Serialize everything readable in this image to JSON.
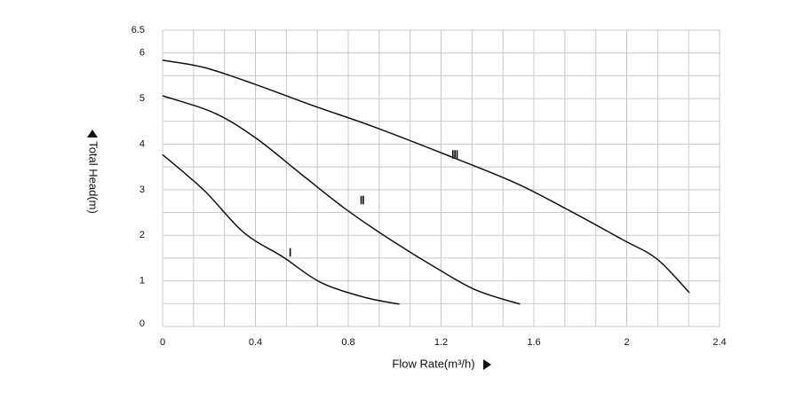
{
  "chart_data": {
    "type": "line",
    "x_label": "Flow Rate(m³/h)",
    "y_label": "Total Head(m)",
    "xlim": [
      0,
      2.4
    ],
    "xticks": [
      0,
      0.4,
      0.8,
      1.2,
      1.6,
      2,
      2.4
    ],
    "xminor_ticks": [
      0.1333,
      0.2667,
      0.5333,
      0.6667,
      0.9333,
      1.0667,
      1.3333,
      1.4667,
      1.7333,
      1.8667,
      2.1333,
      2.2667
    ],
    "ylim": [
      0,
      6.5
    ],
    "yticks": [
      0,
      1,
      2,
      3,
      4,
      5,
      6,
      6.5
    ],
    "yminor_ticks": [
      0.5,
      1.5,
      2.5,
      3.5,
      4.5,
      5.5
    ],
    "grid": true,
    "grid_color": "#c8c8c8",
    "series": [
      {
        "name": "Ⅰ",
        "color": "#111111",
        "x": [
          0,
          0.18,
          0.35,
          0.52,
          0.68,
          0.87,
          1.02
        ],
        "values": [
          3.77,
          2.98,
          2.06,
          1.52,
          0.97,
          0.64,
          0.49
        ]
      },
      {
        "name": "Ⅱ",
        "color": "#111111",
        "x": [
          0,
          0.22,
          0.4,
          0.6,
          0.79,
          0.98,
          1.18,
          1.35,
          1.54
        ],
        "values": [
          5.06,
          4.69,
          4.14,
          3.33,
          2.57,
          1.91,
          1.28,
          0.8,
          0.49
        ]
      },
      {
        "name": "Ⅲ",
        "color": "#111111",
        "x": [
          0,
          0.18,
          0.4,
          0.64,
          0.91,
          1.21,
          1.52,
          1.75,
          1.98,
          2.13,
          2.27
        ],
        "values": [
          5.84,
          5.68,
          5.31,
          4.86,
          4.38,
          3.79,
          3.15,
          2.55,
          1.91,
          1.48,
          0.74
        ]
      }
    ]
  }
}
